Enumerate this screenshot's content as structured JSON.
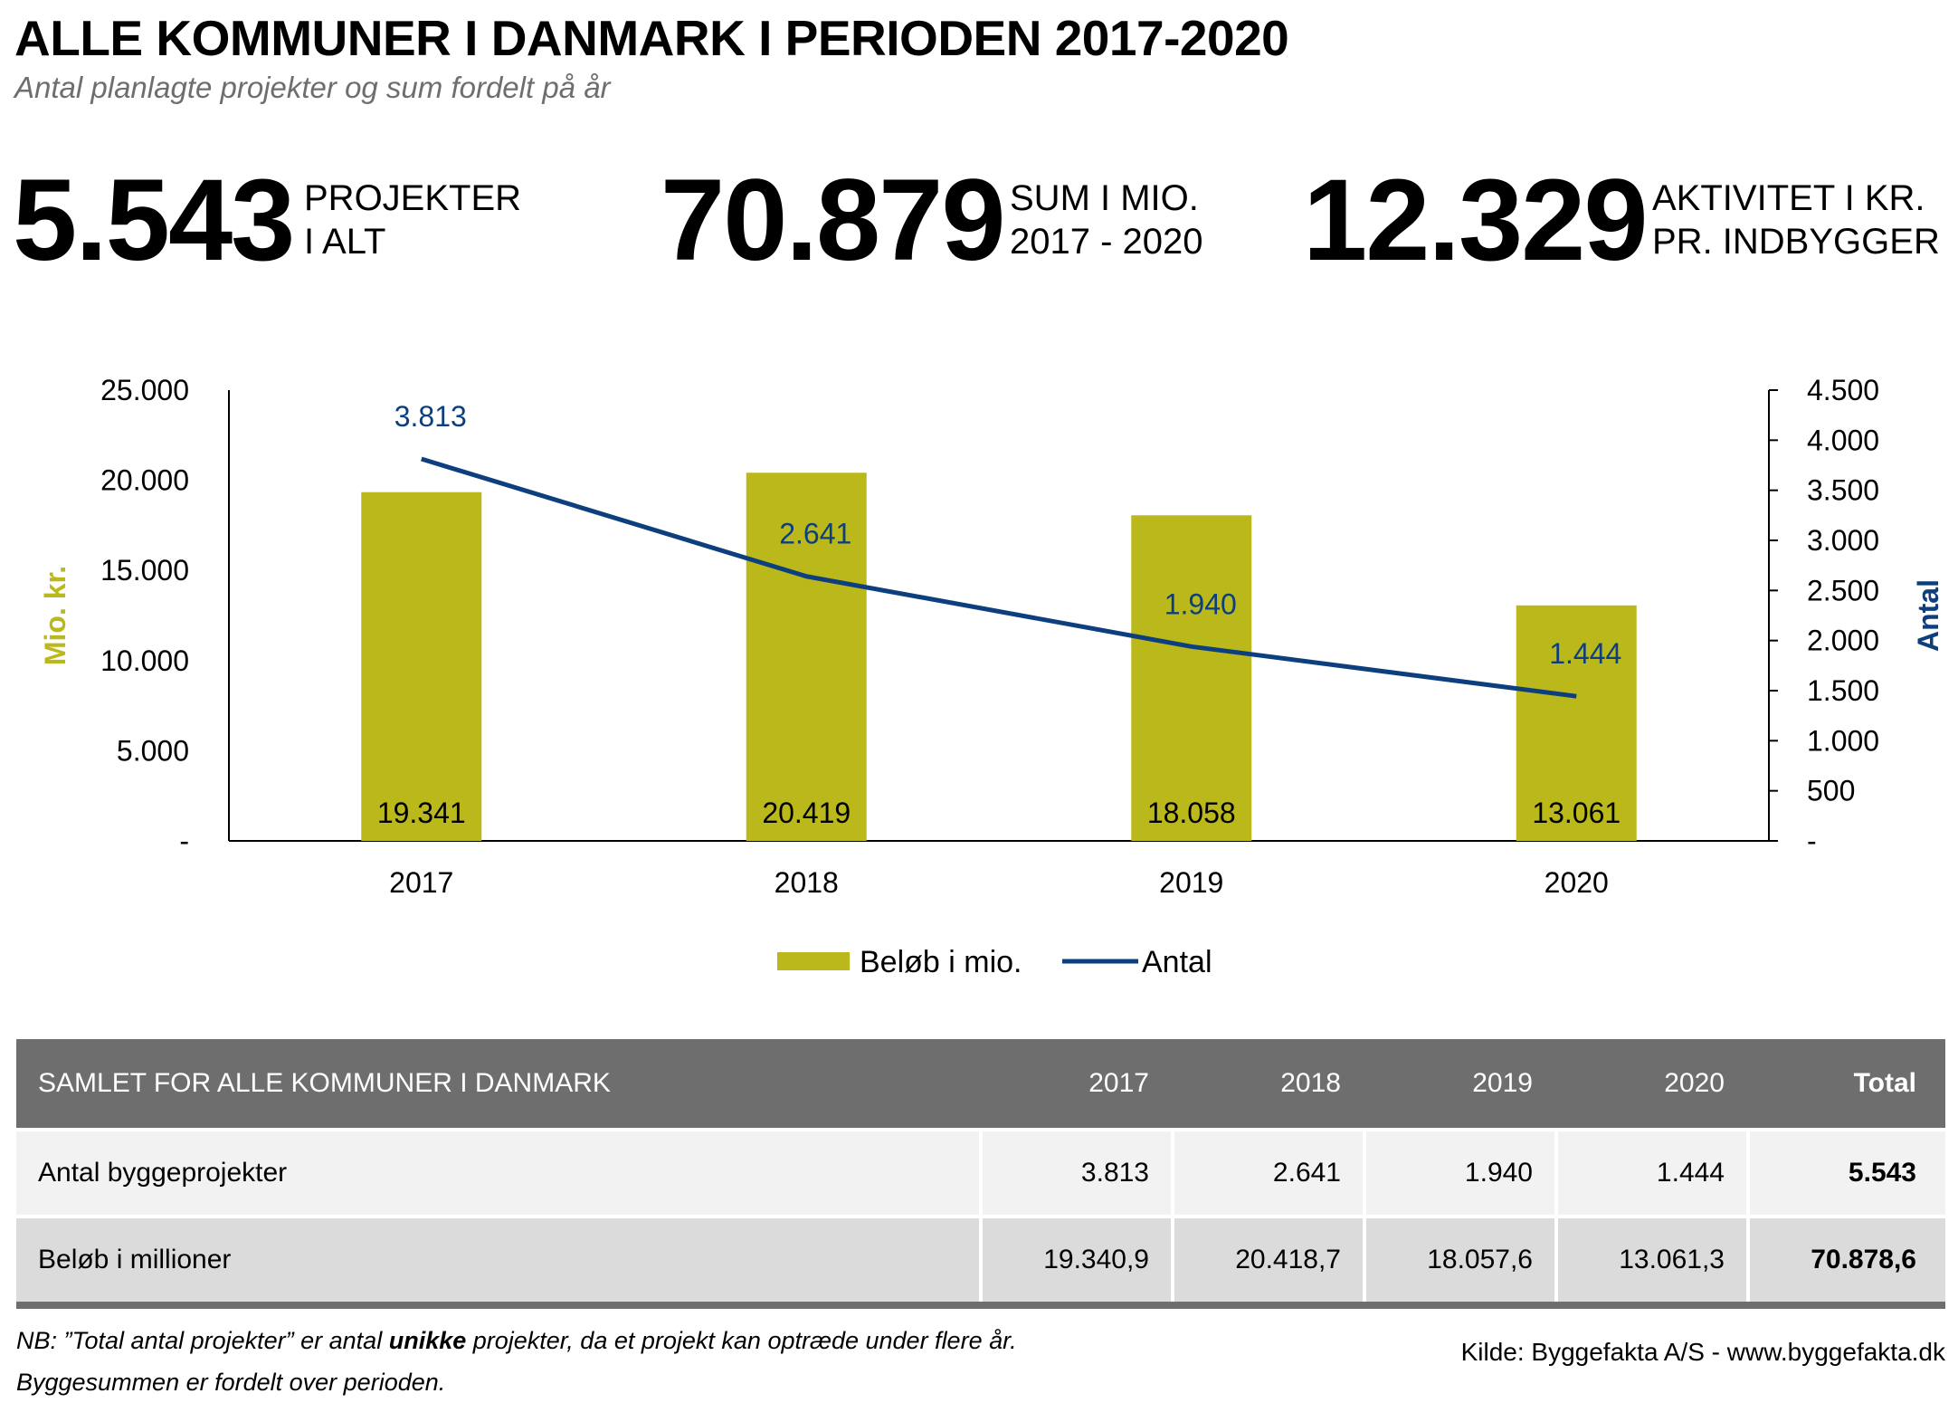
{
  "header": {
    "title": "ALLE KOMMUNER I DANMARK I PERIODEN 2017-2020",
    "subtitle": "Antal planlagte projekter og sum fordelt på år"
  },
  "kpis": [
    {
      "value": "5.543",
      "label_line1": "PROJEKTER",
      "label_line2": "I ALT"
    },
    {
      "value": "70.879",
      "label_line1": "SUM I MIO.",
      "label_line2": "2017 - 2020"
    },
    {
      "value": "12.329",
      "label_line1": "AKTIVITET I KR.",
      "label_line2": "PR. INDBYGGER"
    }
  ],
  "colors": {
    "bar": "#bab81a",
    "line": "#0d3f7f",
    "axis_left_label": "#bab81a",
    "axis_right_label": "#0d3f7f",
    "table_header_bg": "#6f6e6e"
  },
  "chart_data": {
    "type": "bar",
    "categories": [
      "2017",
      "2018",
      "2019",
      "2020"
    ],
    "series": [
      {
        "name": "Beløb i mio.",
        "type": "bar",
        "axis": "left",
        "values": [
          19341,
          20419,
          18058,
          13061
        ],
        "labels": [
          "19.341",
          "20.419",
          "18.058",
          "13.061"
        ]
      },
      {
        "name": "Antal",
        "type": "line",
        "axis": "right",
        "values": [
          3813,
          2641,
          1940,
          1444
        ],
        "labels": [
          "3.813",
          "2.641",
          "1.940",
          "1.444"
        ]
      }
    ],
    "ylabel": "Mio. kr.",
    "y2label": "Antal",
    "ylim": [
      0,
      25000
    ],
    "y2lim": [
      0,
      4500
    ],
    "yticks": [
      "-",
      "5.000",
      "10.000",
      "15.000",
      "20.000",
      "25.000"
    ],
    "y2ticks": [
      "-",
      "500",
      "1.000",
      "1.500",
      "2.000",
      "2.500",
      "3.000",
      "3.500",
      "4.000",
      "4.500"
    ],
    "grid": false,
    "legend_position": "bottom"
  },
  "table": {
    "header": [
      "SAMLET FOR ALLE KOMMUNER I DANMARK",
      "2017",
      "2018",
      "2019",
      "2020",
      "Total"
    ],
    "rows": [
      [
        "Antal byggeprojekter",
        "3.813",
        "2.641",
        "1.940",
        "1.444",
        "5.543"
      ],
      [
        "Beløb i millioner",
        "19.340,9",
        "20.418,7",
        "18.057,6",
        "13.061,3",
        "70.878,6"
      ]
    ]
  },
  "footer": {
    "note_prefix": "NB: ”Total antal projekter” er antal ",
    "note_bold": "unikke",
    "note_suffix": " projekter, da et projekt kan optræde under flere år.",
    "note_line2": "Byggesummen er fordelt over perioden.",
    "source": "Kilde: Byggefakta A/S - www.byggefakta.dk"
  }
}
